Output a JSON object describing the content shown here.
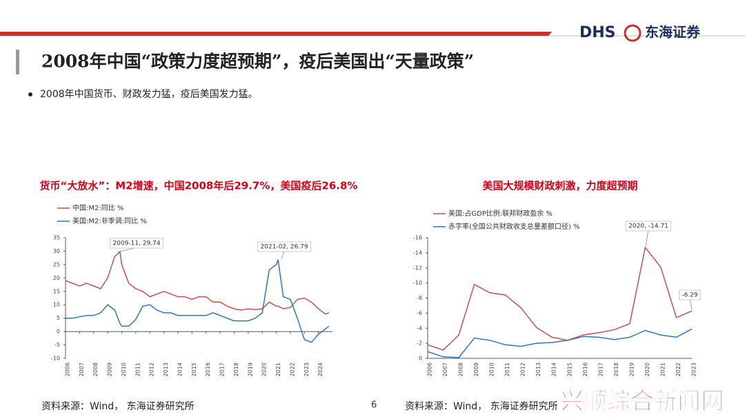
{
  "header": {
    "logo": "DHS",
    "company": "东海证券"
  },
  "title": "2008年中国“政策力度超预期”，疫后美国出“天量政策”",
  "bullet": "2008年中国货币、财政发力猛，疫后美国发力猛。",
  "page_number": "6",
  "watermark": "兴顺综合新闻网",
  "chart_data": [
    {
      "type": "line",
      "title": "货币“大放水”：M2增速，中国2008年后29.7%，美国疫后26.8%",
      "source": "资料来源：Wind， 东海证券研究所",
      "x": [
        2006,
        2006.5,
        2007,
        2007.5,
        2008,
        2008.5,
        2009,
        2009.5,
        2009.875,
        2010,
        2010.5,
        2011,
        2011.5,
        2012,
        2012.5,
        2013,
        2013.5,
        2014,
        2014.5,
        2015,
        2015.5,
        2016,
        2016.5,
        2017,
        2017.5,
        2018,
        2018.5,
        2019,
        2019.5,
        2020,
        2020.5,
        2021,
        2021.125,
        2021.5,
        2022,
        2022.5,
        2023,
        2023.5,
        2024,
        2024.5,
        2024.75
      ],
      "series": [
        {
          "name": "中国:M2:同比 %",
          "color": "#c0504d",
          "values": [
            19,
            18,
            17,
            18,
            17,
            16,
            20,
            28,
            29.74,
            25,
            18,
            16,
            15,
            13,
            14,
            15,
            14,
            13,
            13,
            12,
            13,
            13,
            11,
            11,
            9.5,
            8.5,
            8,
            8.5,
            8.2,
            8.5,
            11,
            9.5,
            9.5,
            8.5,
            9,
            12,
            12.5,
            11,
            8.5,
            6.5,
            7
          ]
        },
        {
          "name": "美国:M2:非季调:同比 %",
          "color": "#2e75b6",
          "values": [
            5,
            5,
            5.5,
            6,
            6,
            7,
            10,
            8,
            3,
            2,
            2,
            4.5,
            9.5,
            10,
            8,
            7,
            7,
            6,
            6,
            6,
            6,
            6,
            7,
            6,
            5,
            4,
            4,
            4,
            5,
            7,
            23,
            25,
            26.79,
            13,
            12,
            5,
            -3,
            -4,
            -1,
            1,
            2
          ]
        }
      ],
      "annotations": [
        "2009-11, 29.74",
        "2021-02, 26.79"
      ],
      "xlim": [
        2006,
        2025
      ],
      "xticks": [
        2006,
        2007,
        2008,
        2009,
        2010,
        2011,
        2012,
        2013,
        2014,
        2015,
        2016,
        2017,
        2018,
        2019,
        2020,
        2021,
        2022,
        2023,
        2024
      ],
      "ylim": [
        -10,
        35
      ],
      "yticks": [
        -10,
        -5,
        0,
        5,
        10,
        15,
        20,
        25,
        30,
        35
      ]
    },
    {
      "type": "line",
      "title": "美国大规模财政刺激，力度超预期",
      "source": "资料来源：Wind， 东海证券研究所",
      "categories": [
        "2006",
        "2007",
        "2008",
        "2009",
        "2010",
        "2011",
        "2012",
        "2013",
        "2014",
        "2015",
        "2016",
        "2017",
        "2018",
        "2019",
        "2020",
        "2021",
        "2022",
        "2023"
      ],
      "series": [
        {
          "name": "美国:占GDP比例:联邦财政盈余 %",
          "color": "#c0504d",
          "values": [
            -1.8,
            -1.1,
            -3.1,
            -9.8,
            -8.7,
            -8.4,
            -6.7,
            -4.1,
            -2.8,
            -2.4,
            -3.1,
            -3.4,
            -3.8,
            -4.6,
            -14.71,
            -12.1,
            -5.4,
            -6.29
          ]
        },
        {
          "name": "赤字率(全国公共财政收支总量差额口径) %",
          "color": "#2e75b6",
          "values": [
            -0.9,
            -0.2,
            -0.1,
            -2.7,
            -2.4,
            -1.8,
            -1.6,
            -2.0,
            -2.1,
            -2.4,
            -2.9,
            -2.8,
            -2.5,
            -2.8,
            -3.7,
            -3.1,
            -2.8,
            -3.9
          ]
        }
      ],
      "annotations": [
        "2020, -14.71",
        "-6.29"
      ],
      "ylim": [
        0,
        -16
      ],
      "yticks": [
        0,
        -2,
        -4,
        -6,
        -8,
        -10,
        -12,
        -14,
        -16
      ]
    }
  ]
}
